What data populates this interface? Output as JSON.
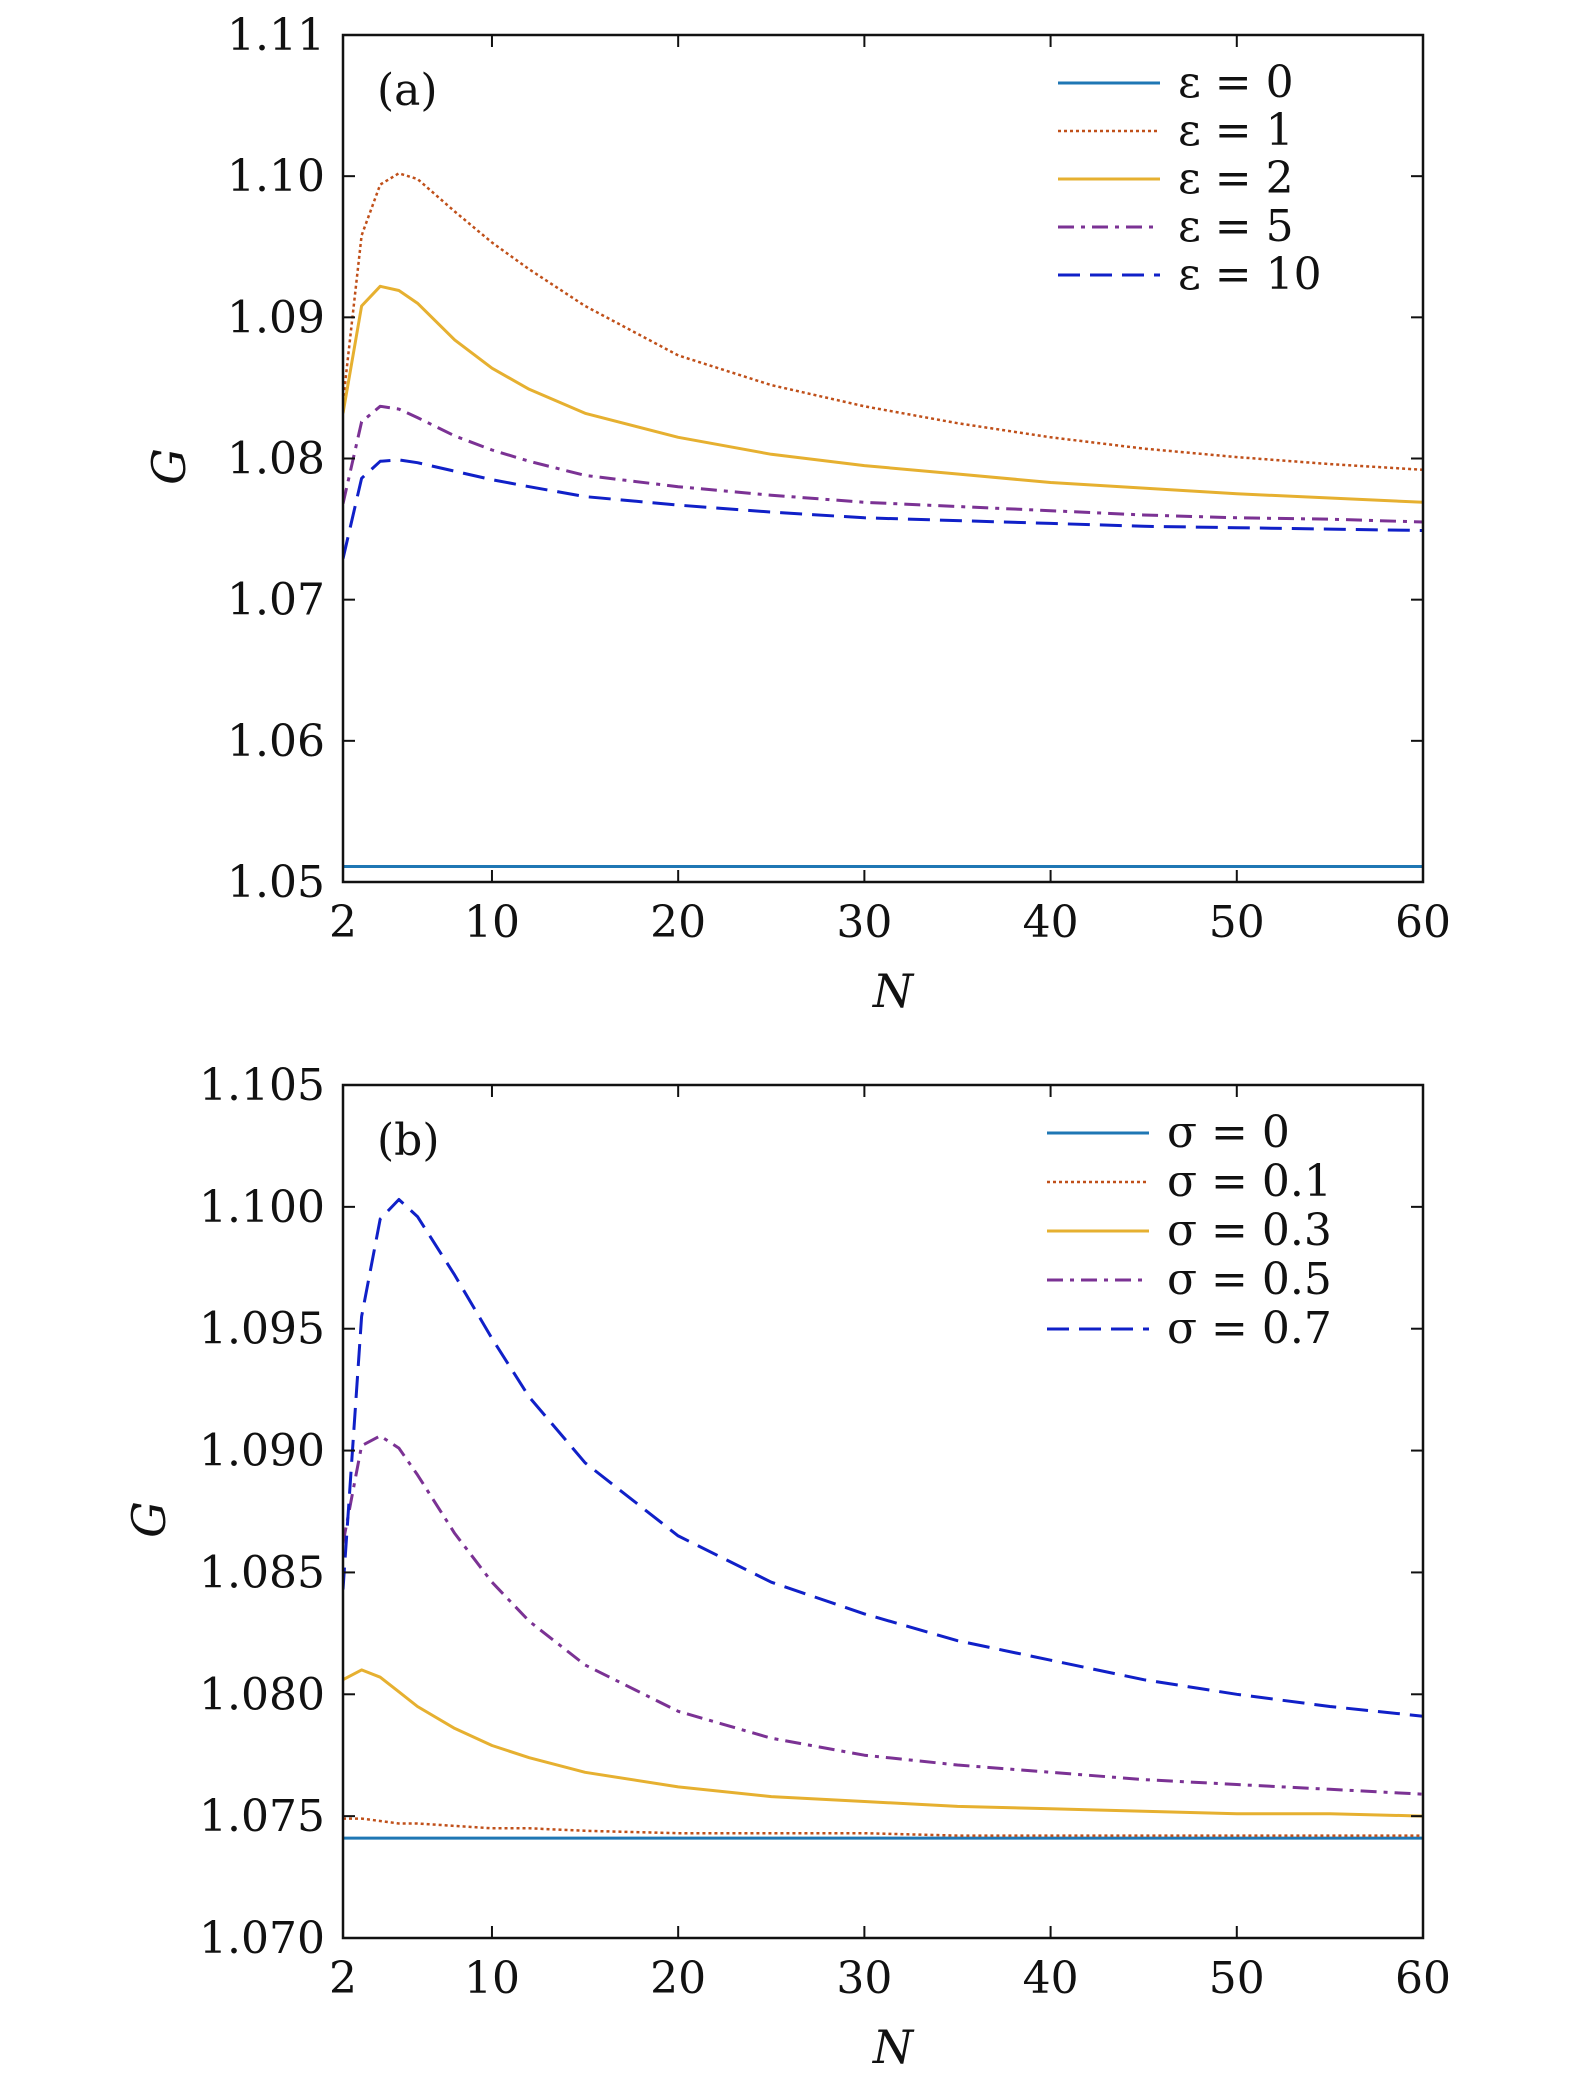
{
  "chart_data": [
    {
      "type": "line",
      "panel_label": "(a)",
      "xlabel": "N",
      "ylabel": "G",
      "xlim": [
        2,
        60
      ],
      "ylim": [
        1.05,
        1.11
      ],
      "xticks": [
        2,
        10,
        20,
        30,
        40,
        50,
        60
      ],
      "yticks": [
        1.05,
        1.06,
        1.07,
        1.08,
        1.09,
        1.1,
        1.11
      ],
      "ytick_labels": [
        "1.05",
        "1.06",
        "1.07",
        "1.08",
        "1.09",
        "1.10",
        "1.11"
      ],
      "legend_position": "top-right",
      "series": [
        {
          "name": "ε = 0",
          "color": "#1f77b4",
          "style": "solid",
          "x": [
            2,
            60
          ],
          "y": [
            1.0511,
            1.0511
          ]
        },
        {
          "name": "ε = 1",
          "color": "#c0501a",
          "style": "dotted",
          "x": [
            2,
            3,
            4,
            5,
            6,
            8,
            10,
            12,
            15,
            20,
            25,
            30,
            35,
            40,
            45,
            50,
            55,
            60
          ],
          "y": [
            1.084,
            1.0958,
            1.0994,
            1.1002,
            1.0998,
            1.0975,
            1.0953,
            1.0934,
            1.0908,
            1.0873,
            1.0852,
            1.0837,
            1.0825,
            1.0815,
            1.0807,
            1.0801,
            1.0796,
            1.0792
          ]
        },
        {
          "name": "ε = 2",
          "color": "#e6b030",
          "style": "solid",
          "x": [
            2,
            3,
            4,
            5,
            6,
            8,
            10,
            12,
            15,
            20,
            25,
            30,
            35,
            40,
            45,
            50,
            55,
            60
          ],
          "y": [
            1.0832,
            1.0908,
            1.0922,
            1.0919,
            1.091,
            1.0884,
            1.0864,
            1.0849,
            1.0832,
            1.0815,
            1.0803,
            1.0795,
            1.0789,
            1.0783,
            1.0779,
            1.0775,
            1.0772,
            1.0769
          ]
        },
        {
          "name": "ε = 5",
          "color": "#7b3294",
          "style": "dashdot",
          "x": [
            2,
            3,
            4,
            5,
            6,
            8,
            10,
            12,
            15,
            20,
            25,
            30,
            35,
            40,
            45,
            50,
            55,
            60
          ],
          "y": [
            1.0768,
            1.0826,
            1.0837,
            1.0835,
            1.0829,
            1.0816,
            1.0806,
            1.0798,
            1.0788,
            1.078,
            1.0774,
            1.0769,
            1.0766,
            1.0763,
            1.076,
            1.0758,
            1.0757,
            1.0755
          ]
        },
        {
          "name": "ε = 10",
          "color": "#1020c8",
          "style": "dashed",
          "x": [
            2,
            3,
            4,
            5,
            6,
            8,
            10,
            12,
            15,
            20,
            25,
            30,
            35,
            40,
            45,
            50,
            55,
            60
          ],
          "y": [
            1.0729,
            1.0786,
            1.0798,
            1.0799,
            1.0797,
            1.0791,
            1.0785,
            1.078,
            1.0773,
            1.0767,
            1.0762,
            1.0758,
            1.0756,
            1.0754,
            1.0752,
            1.0751,
            1.075,
            1.0749
          ]
        }
      ]
    },
    {
      "type": "line",
      "panel_label": "(b)",
      "xlabel": "N",
      "ylabel": "G",
      "xlim": [
        2,
        60
      ],
      "ylim": [
        1.07,
        1.105
      ],
      "xticks": [
        2,
        10,
        20,
        30,
        40,
        50,
        60
      ],
      "yticks": [
        1.07,
        1.075,
        1.08,
        1.085,
        1.09,
        1.095,
        1.1,
        1.105
      ],
      "ytick_labels": [
        "1.070",
        "1.075",
        "1.080",
        "1.085",
        "1.090",
        "1.095",
        "1.100",
        "1.105"
      ],
      "legend_position": "top-right",
      "series": [
        {
          "name": "σ = 0",
          "color": "#1f77b4",
          "style": "solid",
          "x": [
            2,
            60
          ],
          "y": [
            1.0741,
            1.0741
          ]
        },
        {
          "name": "σ = 0.1",
          "color": "#c0501a",
          "style": "dotted",
          "x": [
            2,
            3,
            4,
            5,
            6,
            8,
            10,
            12,
            15,
            20,
            25,
            30,
            35,
            40,
            45,
            50,
            55,
            60
          ],
          "y": [
            1.0749,
            1.0749,
            1.0748,
            1.0747,
            1.0747,
            1.0746,
            1.0745,
            1.0745,
            1.0744,
            1.0743,
            1.0743,
            1.0743,
            1.0742,
            1.0742,
            1.0742,
            1.0742,
            1.0742,
            1.0742
          ]
        },
        {
          "name": "σ = 0.3",
          "color": "#e6b030",
          "style": "solid",
          "x": [
            2,
            3,
            4,
            5,
            6,
            8,
            10,
            12,
            15,
            20,
            25,
            30,
            35,
            40,
            45,
            50,
            55,
            60
          ],
          "y": [
            1.0806,
            1.081,
            1.0807,
            1.0801,
            1.0795,
            1.0786,
            1.0779,
            1.0774,
            1.0768,
            1.0762,
            1.0758,
            1.0756,
            1.0754,
            1.0753,
            1.0752,
            1.0751,
            1.0751,
            1.075
          ]
        },
        {
          "name": "σ = 0.5",
          "color": "#7b3294",
          "style": "dashdot",
          "x": [
            2,
            3,
            4,
            5,
            6,
            8,
            10,
            12,
            15,
            20,
            25,
            30,
            35,
            40,
            45,
            50,
            55,
            60
          ],
          "y": [
            1.0862,
            1.0902,
            1.0906,
            1.0901,
            1.089,
            1.0866,
            1.0846,
            1.083,
            1.0812,
            1.0793,
            1.0782,
            1.0775,
            1.0771,
            1.0768,
            1.0765,
            1.0763,
            1.0761,
            1.0759
          ]
        },
        {
          "name": "σ = 0.7",
          "color": "#1020c8",
          "style": "dashed",
          "x": [
            2,
            3,
            4,
            5,
            6,
            8,
            10,
            12,
            15,
            20,
            25,
            30,
            35,
            40,
            45,
            50,
            55,
            60
          ],
          "y": [
            1.0843,
            1.0955,
            1.0995,
            1.1003,
            1.0996,
            1.0972,
            1.0946,
            1.0922,
            1.0895,
            1.0865,
            1.0846,
            1.0833,
            1.0822,
            1.0814,
            1.0806,
            1.08,
            1.0795,
            1.0791
          ]
        }
      ]
    }
  ]
}
